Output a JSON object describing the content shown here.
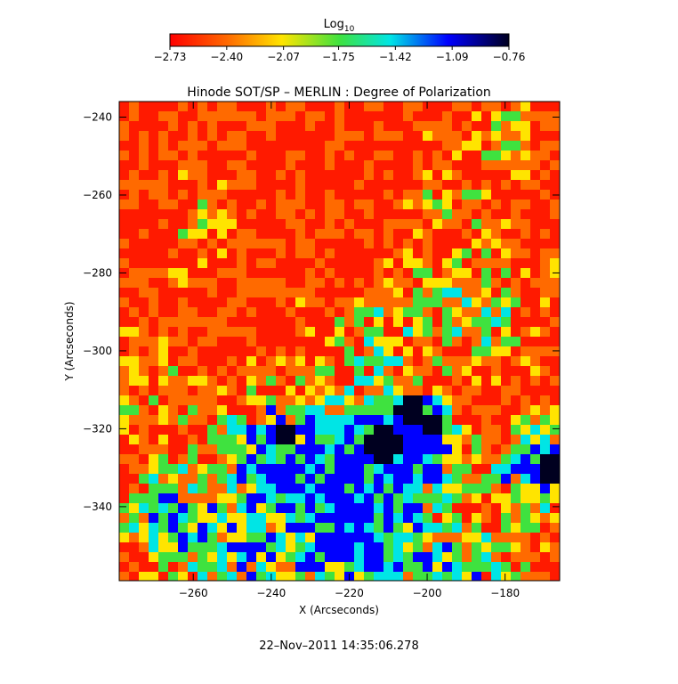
{
  "chart_data": {
    "type": "heatmap",
    "title": "Hinode SOT/SP – MERLIN : Degree of Polarization",
    "xlabel": "X (Arcseconds)",
    "ylabel": "Y (Arcseconds)",
    "xlim": [
      -279,
      -166
    ],
    "ylim": [
      -359,
      -236
    ],
    "x_ticks": [
      -260,
      -240,
      -220,
      -200,
      -180
    ],
    "y_ticks": [
      -240,
      -260,
      -280,
      -300,
      -320,
      -340
    ],
    "x_tick_labels": [
      "−260",
      "−240",
      "−220",
      "−200",
      "−180"
    ],
    "y_tick_labels": [
      "−240",
      "−260",
      "−280",
      "−300",
      "−320",
      "−340"
    ],
    "colorbar": {
      "label_base": "Log",
      "label_sub": "10",
      "range": [
        -2.73,
        -0.76
      ],
      "tick_labels": [
        "−2.73",
        "−2.40",
        "−2.07",
        "−1.75",
        "−1.42",
        "−1.09",
        "−0.76"
      ],
      "tick_values": [
        -2.73,
        -2.4,
        -2.07,
        -1.75,
        -1.42,
        -1.09,
        -0.76
      ],
      "colors": [
        "#ff0000",
        "#ff6a00",
        "#ffe400",
        "#3fe23f",
        "#00e5e5",
        "#0000ff",
        "#000020"
      ]
    },
    "timestamp": "22–Nov–2011 14:35:06.278"
  }
}
